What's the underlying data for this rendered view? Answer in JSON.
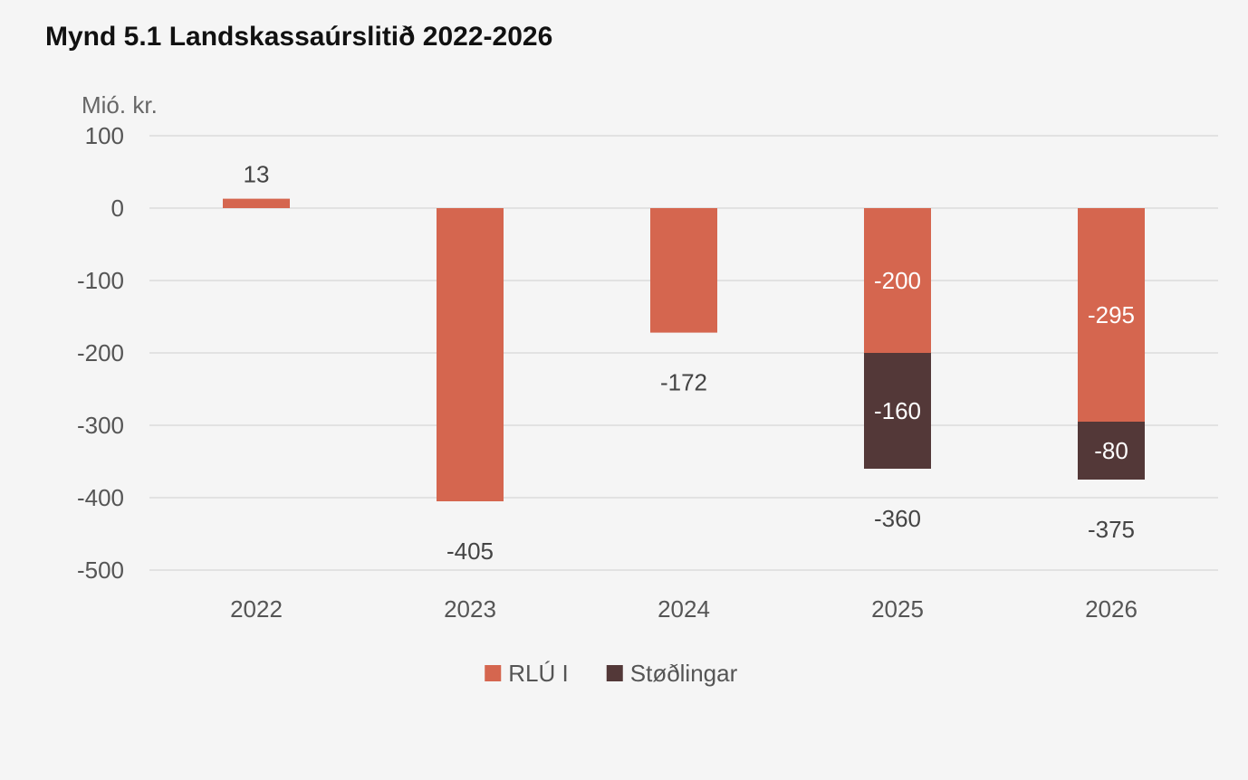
{
  "title": "Mynd 5.1 Landskassaúrslitið 2022-2026",
  "chart_data": {
    "type": "bar",
    "stacked": true,
    "title": "Mynd 5.1 Landskassaúrslitið 2022-2026",
    "ylabel": "Mió. kr.",
    "xlabel": "",
    "categories": [
      "2022",
      "2023",
      "2024",
      "2025",
      "2026"
    ],
    "series": [
      {
        "name": "RLÚ I",
        "values": [
          13,
          -405,
          -172,
          -200,
          -295
        ],
        "color": "#d5664f"
      },
      {
        "name": "Støðlingar",
        "values": [
          0,
          0,
          0,
          -160,
          -80
        ],
        "color": "#533838"
      }
    ],
    "segment_labels": [
      {
        "category": "2025",
        "series": "RLÚ I",
        "text": "-200"
      },
      {
        "category": "2026",
        "series": "RLÚ I",
        "text": "-295"
      },
      {
        "category": "2025",
        "series": "Støðlingar",
        "text": "-160"
      },
      {
        "category": "2026",
        "series": "Støðlingar",
        "text": "-80"
      }
    ],
    "total_labels": [
      "13",
      "-405",
      "-172",
      "-360",
      "-375"
    ],
    "ylim": [
      -500,
      100
    ],
    "yticks": [
      100,
      0,
      -100,
      -200,
      -300,
      -400,
      -500
    ],
    "ytick_labels": [
      "100",
      "0",
      "-100",
      "-200",
      "-300",
      "-400",
      "-500"
    ],
    "grid": true,
    "legend_position": "bottom"
  }
}
